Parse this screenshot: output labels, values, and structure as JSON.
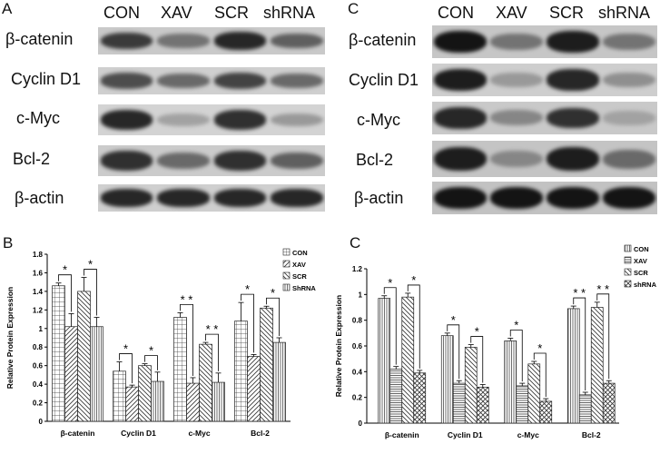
{
  "panels": {
    "blot_left_letter": "A",
    "blot_right_letter": "C",
    "chart_left_letter": "B",
    "chart_right_letter": "C"
  },
  "blot_left": {
    "lanes": [
      "CON",
      "XAV",
      "SCR",
      "shRNA"
    ],
    "rows": [
      {
        "label": "β-catenin",
        "intensity": [
          0.75,
          0.45,
          0.85,
          0.55
        ]
      },
      {
        "label": "Cyclin D1",
        "intensity": [
          0.65,
          0.5,
          0.7,
          0.5
        ]
      },
      {
        "label": "c-Myc",
        "intensity": [
          0.85,
          0.2,
          0.8,
          0.25
        ]
      },
      {
        "label": "Bcl-2",
        "intensity": [
          0.8,
          0.5,
          0.8,
          0.55
        ]
      },
      {
        "label": "β-actin",
        "intensity": [
          0.85,
          0.85,
          0.85,
          0.85
        ]
      }
    ]
  },
  "blot_right": {
    "lanes": [
      "CON",
      "XAV",
      "SCR",
      "shRNA"
    ],
    "rows": [
      {
        "label": "β-catenin",
        "intensity": [
          0.95,
          0.45,
          0.9,
          0.45
        ]
      },
      {
        "label": "Cyclin D1",
        "intensity": [
          0.9,
          0.25,
          0.85,
          0.3
        ]
      },
      {
        "label": "c-Myc",
        "intensity": [
          0.85,
          0.35,
          0.8,
          0.2
        ]
      },
      {
        "label": "Bcl-2",
        "intensity": [
          0.9,
          0.35,
          0.9,
          0.5
        ]
      },
      {
        "label": "β-actin",
        "intensity": [
          0.95,
          0.95,
          0.95,
          0.95
        ]
      }
    ]
  },
  "chart_data": [
    {
      "type": "bar",
      "title": "",
      "xlabel": "",
      "ylabel": "Relative Protein Expression",
      "ylim": [
        0,
        1.8
      ],
      "yticks": [
        "0",
        "0.2",
        "0.4",
        "0.6",
        "0.8",
        "1",
        "1.2",
        "1.4",
        "1.6",
        "1.8"
      ],
      "categories": [
        "β-catenin",
        "Cyclin D1",
        "c-Myc",
        "Bcl-2"
      ],
      "legend_position": "top-right",
      "series": [
        {
          "name": "CON",
          "values": [
            1.46,
            0.54,
            1.12,
            1.08
          ],
          "errors": [
            0.03,
            0.1,
            0.05,
            0.2
          ],
          "pattern": "grid"
        },
        {
          "name": "XAV",
          "values": [
            1.02,
            0.37,
            0.41,
            0.7
          ],
          "errors": [
            0.14,
            0.02,
            0.06,
            0.02
          ],
          "pattern": "diag"
        },
        {
          "name": "SCR",
          "values": [
            1.4,
            0.6,
            0.83,
            1.22
          ],
          "errors": [
            0.15,
            0.02,
            0.02,
            0.02
          ],
          "pattern": "diag2"
        },
        {
          "name": "ShRNA",
          "values": [
            1.02,
            0.43,
            0.42,
            0.85
          ],
          "errors": [
            0.1,
            0.1,
            0.1,
            0.05
          ],
          "pattern": "vert"
        }
      ],
      "significance": [
        {
          "category": 0,
          "pair": "left",
          "mark": "*"
        },
        {
          "category": 0,
          "pair": "right",
          "mark": "*"
        },
        {
          "category": 1,
          "pair": "left",
          "mark": "*"
        },
        {
          "category": 1,
          "pair": "right",
          "mark": "*"
        },
        {
          "category": 2,
          "pair": "left",
          "mark": "* *"
        },
        {
          "category": 2,
          "pair": "right",
          "mark": "* *"
        },
        {
          "category": 3,
          "pair": "left",
          "mark": "*"
        },
        {
          "category": 3,
          "pair": "right",
          "mark": "*"
        }
      ]
    },
    {
      "type": "bar",
      "title": "",
      "xlabel": "",
      "ylabel": "Relative Protein Expression",
      "ylim": [
        0,
        1.2
      ],
      "yticks": [
        "0",
        "0.2",
        "0.4",
        "0.6",
        "0.8",
        "1",
        "1.2"
      ],
      "categories": [
        "β-catenin",
        "Cyclin D1",
        "c-Myc",
        "Bcl-2"
      ],
      "legend_position": "top-right",
      "series": [
        {
          "name": "CON",
          "values": [
            0.97,
            0.68,
            0.64,
            0.89
          ],
          "errors": [
            0.02,
            0.02,
            0.02,
            0.02
          ],
          "pattern": "vert"
        },
        {
          "name": "XAV",
          "values": [
            0.42,
            0.31,
            0.29,
            0.22
          ],
          "errors": [
            0.02,
            0.02,
            0.02,
            0.02
          ],
          "pattern": "horiz"
        },
        {
          "name": "SCR",
          "values": [
            0.98,
            0.59,
            0.46,
            0.9
          ],
          "errors": [
            0.03,
            0.02,
            0.02,
            0.04
          ],
          "pattern": "diag2"
        },
        {
          "name": "shRNA",
          "values": [
            0.39,
            0.28,
            0.17,
            0.31
          ],
          "errors": [
            0.02,
            0.02,
            0.02,
            0.02
          ],
          "pattern": "cross"
        }
      ],
      "significance": [
        {
          "category": 0,
          "pair": "left",
          "mark": "*"
        },
        {
          "category": 0,
          "pair": "right",
          "mark": "*"
        },
        {
          "category": 1,
          "pair": "left",
          "mark": "*"
        },
        {
          "category": 1,
          "pair": "right",
          "mark": "*"
        },
        {
          "category": 2,
          "pair": "left",
          "mark": "*"
        },
        {
          "category": 2,
          "pair": "right",
          "mark": "*"
        },
        {
          "category": 3,
          "pair": "left",
          "mark": "* *"
        },
        {
          "category": 3,
          "pair": "right",
          "mark": "* *"
        }
      ]
    }
  ]
}
